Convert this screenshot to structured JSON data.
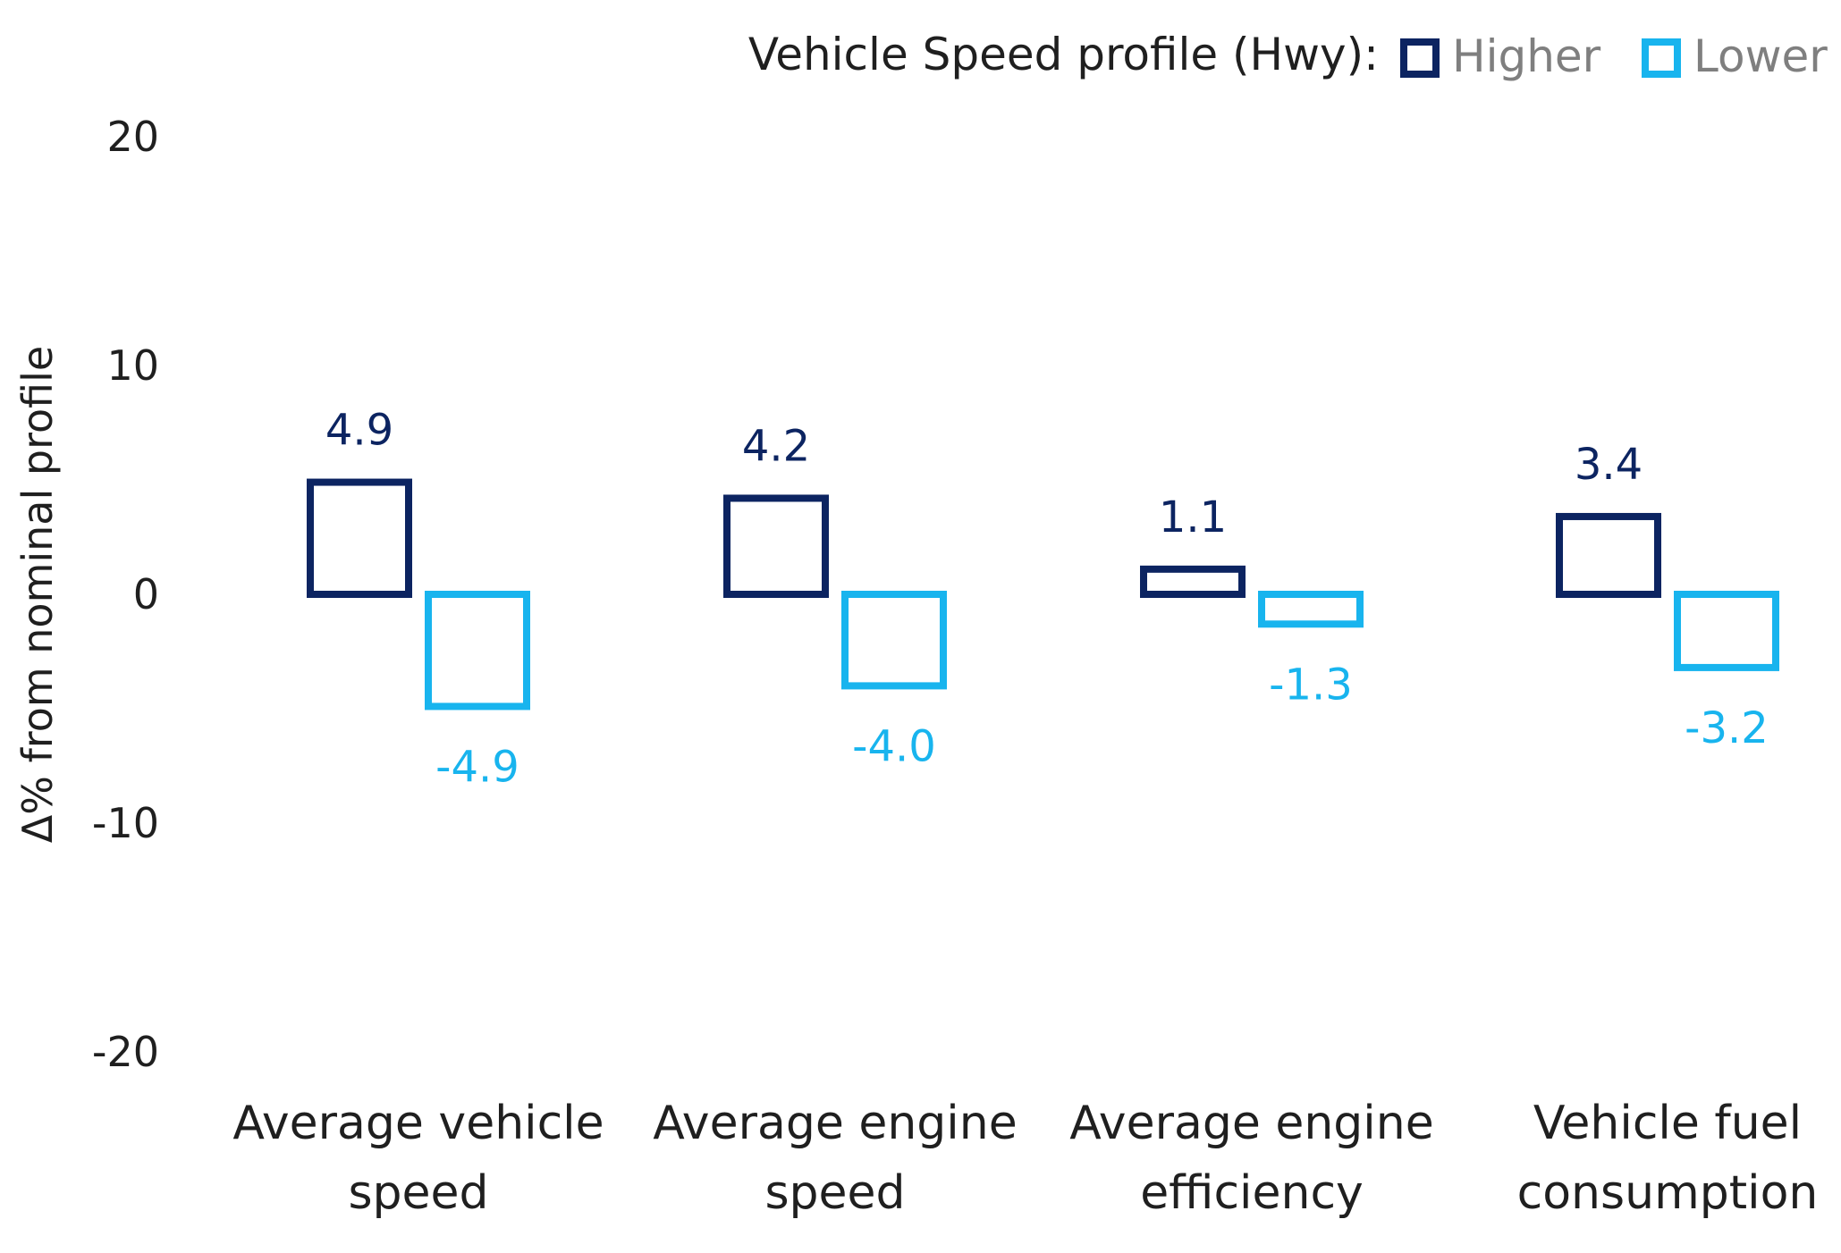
{
  "chart_data": {
    "type": "bar",
    "title": "",
    "ylabel": "Δ% from nominal profile",
    "xlabel": "",
    "ylim": [
      -20,
      20
    ],
    "yticks": [
      20,
      10,
      0,
      -10,
      -20
    ],
    "grid": false,
    "legend": {
      "title": "Vehicle Speed profile (Hwy):",
      "placement": "top-right"
    },
    "categories": [
      [
        "Average vehicle",
        "speed"
      ],
      [
        "Average engine",
        "speed"
      ],
      [
        "Average engine",
        "efficiency"
      ],
      [
        "Vehicle fuel",
        "consumption"
      ]
    ],
    "series": [
      {
        "name": "Higher",
        "color": "#0c2461",
        "values": [
          4.9,
          4.2,
          1.1,
          3.4
        ],
        "labels": [
          "4.9",
          "4.2",
          "1.1",
          "3.4"
        ]
      },
      {
        "name": "Lower",
        "color": "#18b4ee",
        "values": [
          -4.9,
          -4.0,
          -1.3,
          -3.2
        ],
        "labels": [
          "-4.9",
          "-4.0",
          "-1.3",
          "-3.2"
        ]
      }
    ]
  }
}
